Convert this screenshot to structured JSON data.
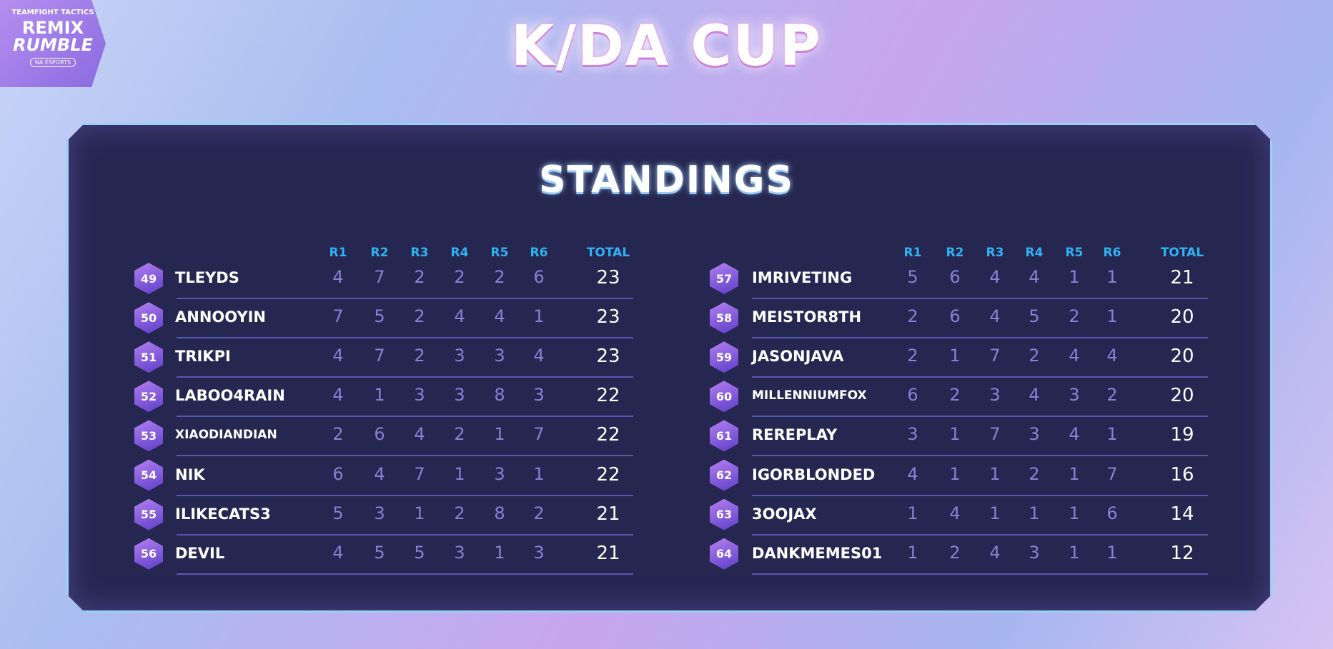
{
  "logo": {
    "top": "TEAMFIGHT TACTICS",
    "line1": "REMIX",
    "line2": "RUMBLE",
    "badge": "NA ESPORTS"
  },
  "title": "K/DA CUP",
  "subtitle": "STANDINGS",
  "tables": [
    {
      "columns": [
        "R1",
        "R2",
        "R3",
        "R4",
        "R5",
        "R6",
        "TOTAL"
      ],
      "rows": [
        [
          49,
          "TLEYDS",
          4,
          7,
          2,
          2,
          2,
          6,
          23
        ],
        [
          50,
          "ANNOOYIN",
          7,
          5,
          2,
          4,
          4,
          1,
          23
        ],
        [
          51,
          "TRIKPI",
          4,
          7,
          2,
          3,
          3,
          4,
          23
        ],
        [
          52,
          "LABOO4RAIN",
          4,
          1,
          3,
          3,
          8,
          3,
          22
        ],
        [
          53,
          "XIAODIANDIAN",
          2,
          6,
          4,
          2,
          1,
          7,
          22
        ],
        [
          54,
          "NIK",
          6,
          4,
          7,
          1,
          3,
          1,
          22
        ],
        [
          55,
          "ILIKECATS3",
          5,
          3,
          1,
          2,
          8,
          2,
          21
        ],
        [
          56,
          "DEVIL",
          4,
          5,
          5,
          3,
          1,
          3,
          21
        ]
      ]
    },
    {
      "columns": [
        "R1",
        "R2",
        "R3",
        "R4",
        "R5",
        "R6",
        "TOTAL"
      ],
      "rows": [
        [
          57,
          "IMRIVETING",
          5,
          6,
          4,
          4,
          1,
          1,
          21
        ],
        [
          58,
          "MEISTOR8TH",
          2,
          6,
          4,
          5,
          2,
          1,
          20
        ],
        [
          59,
          "JASONJAVA",
          2,
          1,
          7,
          2,
          4,
          4,
          20
        ],
        [
          60,
          "MILLENNIUMFOX",
          6,
          2,
          3,
          4,
          3,
          2,
          20
        ],
        [
          61,
          "REREPLAY",
          3,
          1,
          7,
          3,
          4,
          1,
          19
        ],
        [
          62,
          "IGORBLONDED",
          4,
          1,
          1,
          2,
          1,
          7,
          16
        ],
        [
          63,
          "3OOJAX",
          1,
          4,
          1,
          1,
          1,
          6,
          14
        ],
        [
          64,
          "DANKMEMES01",
          1,
          2,
          4,
          3,
          1,
          1,
          12
        ]
      ]
    }
  ]
}
